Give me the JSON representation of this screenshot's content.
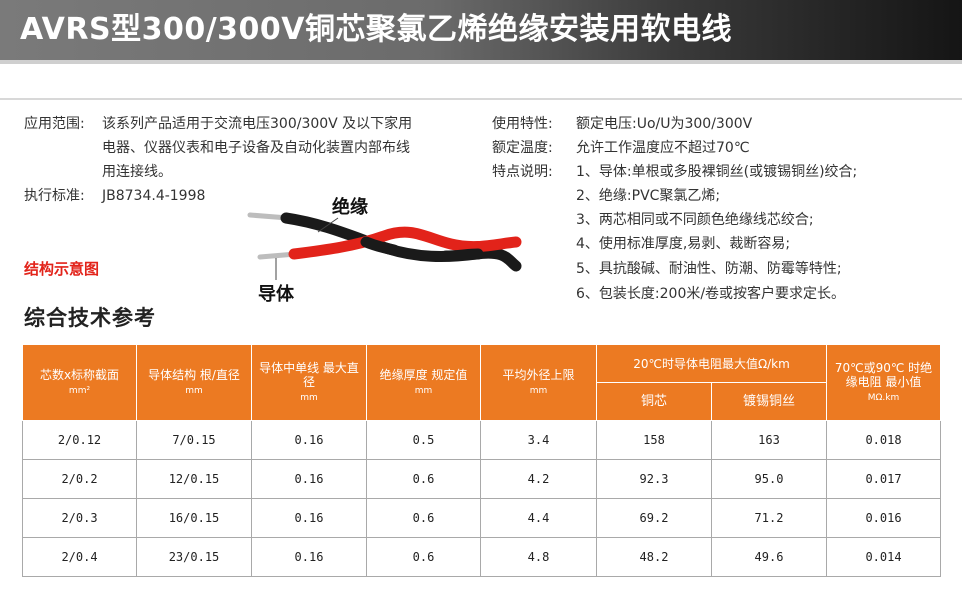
{
  "header": {
    "title": "AVRS型300/300V铜芯聚氯乙烯绝缘安装用软电线"
  },
  "left_info": {
    "scope_label": "应用范围:",
    "scope_lines": [
      "该系列产品适用于交流电压300/300V 及以下家用",
      "电器、仪器仪表和电子设备及自动化装置内部布线",
      "用连接线。"
    ],
    "standard_label": "执行标准:",
    "standard_value": "JB8734.4-1998"
  },
  "right_info": {
    "usage_label": "使用特性:",
    "usage_value": "额定电压:Uo/U为300/300V",
    "temp_label": "额定温度:",
    "temp_value": "允许工作温度应不超过70℃",
    "features_label": "特点说明:",
    "features": [
      "1、导体:单根或多股裸铜丝(或镀锡铜丝)绞合;",
      "2、绝缘:PVC聚氯乙烯;",
      "3、两芯相同或不同颜色绝缘线芯绞合;",
      "4、使用标准厚度,易剥、裁断容易;",
      "5、具抗酸碱、耐油性、防潮、防霉等特性;",
      "6、包装长度:200米/卷或按客户要求定长。"
    ]
  },
  "diagram": {
    "title": "结构示意图",
    "insulation_label": "绝缘",
    "conductor_label": "导体",
    "colors": {
      "red_wire": "#e2231a",
      "black_wire": "#1a1a1a",
      "copper": "#c9c9c9"
    }
  },
  "section_title": "综合技术参考",
  "table": {
    "accent_color": "#ec7a22",
    "headers": {
      "c1": "芯数x标称截面",
      "c1_unit": "mm²",
      "c2": "导体结构 根/直径",
      "c2_unit": "mm",
      "c3": "导体中单线 最大直径",
      "c3_unit": "mm",
      "c4": "绝缘厚度 规定值",
      "c4_unit": "mm",
      "c5": "平均外径上限",
      "c5_unit": "mm",
      "c6": "20℃时导体电阻最大值Ω/km",
      "c6a": "铜芯",
      "c6b": "镀锡铜丝",
      "c7": "70℃或90℃ 时绝缘电阻 最小值",
      "c7_unit": "MΩ.km"
    },
    "rows": [
      [
        "2/0.12",
        "7/0.15",
        "0.16",
        "0.5",
        "3.4",
        "158",
        "163",
        "0.018"
      ],
      [
        "2/0.2",
        "12/0.15",
        "0.16",
        "0.6",
        "4.2",
        "92.3",
        "95.0",
        "0.017"
      ],
      [
        "2/0.3",
        "16/0.15",
        "0.16",
        "0.6",
        "4.4",
        "69.2",
        "71.2",
        "0.016"
      ],
      [
        "2/0.4",
        "23/0.15",
        "0.16",
        "0.6",
        "4.8",
        "48.2",
        "49.6",
        "0.014"
      ]
    ]
  }
}
